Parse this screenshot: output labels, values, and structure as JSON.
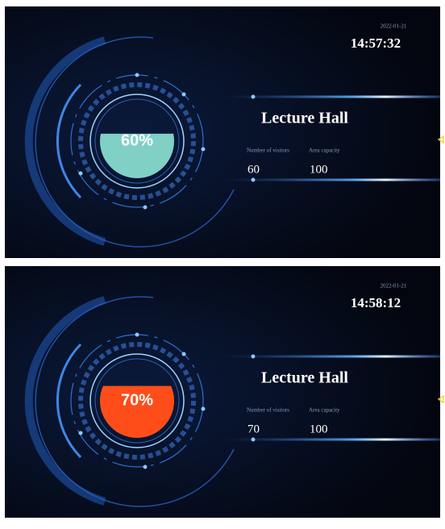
{
  "panels": [
    {
      "date": "2022-01-21",
      "time": "14:57:32",
      "title": "Lecture Hall",
      "visitors_label": "Number of visitors",
      "capacity_label": "Area capacity",
      "visitors": 60,
      "capacity": 100,
      "gauge": {
        "value": 60,
        "label": "60%",
        "color": "#80d0c6"
      }
    },
    {
      "date": "2022-01-21",
      "time": "14:58:12",
      "title": "Lecture Hall",
      "visitors_label": "Number of visitors",
      "capacity_label": "Area capacity",
      "visitors": 70,
      "capacity": 100,
      "gauge": {
        "value": 70,
        "label": "70%",
        "color": "#ff4d1a"
      }
    }
  ]
}
